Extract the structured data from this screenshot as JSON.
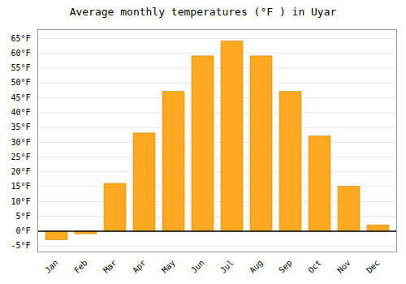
{
  "chart_data": {
    "type": "bar",
    "title": "Average monthly temperatures (°F ) in Uyar",
    "categories": [
      "Jan",
      "Feb",
      "Mar",
      "Apr",
      "May",
      "Jun",
      "Jul",
      "Aug",
      "Sep",
      "Oct",
      "Nov",
      "Dec"
    ],
    "values": [
      -3,
      -1,
      16,
      33,
      47,
      59,
      64,
      59,
      47,
      32,
      15,
      2
    ],
    "color": "#FFA820",
    "ylim": [
      -7,
      68
    ],
    "yticks": [
      {
        "value": -5,
        "label": "-5°F"
      },
      {
        "value": 0,
        "label": "0°F"
      },
      {
        "value": 5,
        "label": "5°F"
      },
      {
        "value": 10,
        "label": "10°F"
      },
      {
        "value": 15,
        "label": "15°F"
      },
      {
        "value": 20,
        "label": "20°F"
      },
      {
        "value": 25,
        "label": "25°F"
      },
      {
        "value": 30,
        "label": "30°F"
      },
      {
        "value": 35,
        "label": "35°F"
      },
      {
        "value": 40,
        "label": "40°F"
      },
      {
        "value": 45,
        "label": "45°F"
      },
      {
        "value": 50,
        "label": "50°F"
      },
      {
        "value": 55,
        "label": "55°F"
      },
      {
        "value": 60,
        "label": "60°F"
      },
      {
        "value": 65,
        "label": "65°F"
      }
    ],
    "grid": true
  }
}
